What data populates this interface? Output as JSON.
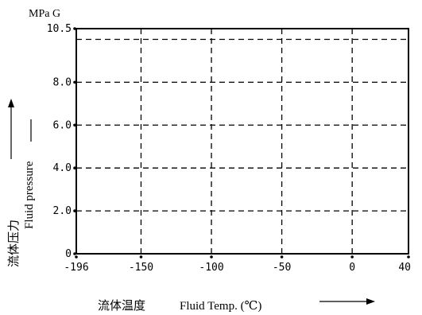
{
  "chart_data": {
    "type": "line",
    "unit_label": "MPa G",
    "xlabel_cn": "流体温度",
    "xlabel_en": "Fluid Temp. (℃)",
    "ylabel_cn": "流体压力",
    "ylabel_en": "Fluid pressure",
    "xlim": [
      -196,
      40
    ],
    "ylim": [
      0,
      10.5
    ],
    "x_ticks": [
      {
        "value": -196,
        "label": "-196"
      },
      {
        "value": -150,
        "label": "-150"
      },
      {
        "value": -100,
        "label": "-100"
      },
      {
        "value": -50,
        "label": "-50"
      },
      {
        "value": 0,
        "label": "0"
      },
      {
        "value": 40,
        "label": "40"
      }
    ],
    "y_ticks": [
      {
        "value": 0,
        "label": "0"
      },
      {
        "value": 2,
        "label": "2.0"
      },
      {
        "value": 4,
        "label": "4.0"
      },
      {
        "value": 6,
        "label": "6.0"
      },
      {
        "value": 8,
        "label": "8.0"
      },
      {
        "value": 10.5,
        "label": "10.5"
      }
    ],
    "grid": true,
    "series": [
      {
        "x": [
          -196,
          40
        ],
        "y": [
          10,
          10
        ]
      }
    ],
    "line_color": "#000000"
  }
}
